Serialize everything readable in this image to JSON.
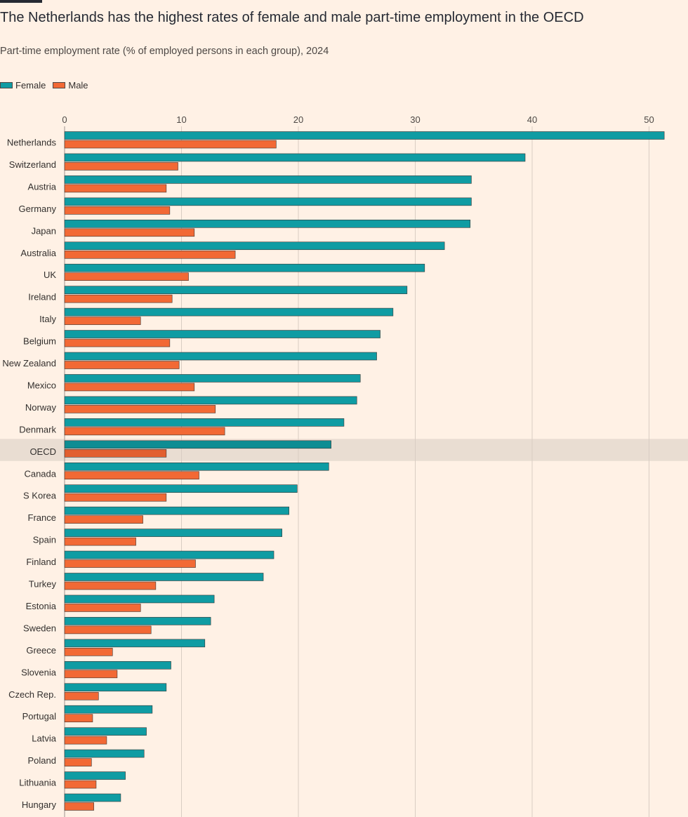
{
  "title": "The Netherlands has the highest rates of female and male part-time employment in the OECD",
  "subtitle": "Part-time employment rate (% of employed persons in each group), 2024",
  "colors": {
    "female": "#0f9ca3",
    "male": "#f26935",
    "highlight_row": "#e9ddd2",
    "background": "#fff1e5"
  },
  "chart_data": {
    "type": "bar",
    "orientation": "horizontal",
    "title": "The Netherlands has the highest rates of female and male part-time employment in the OECD",
    "subtitle": "Part-time employment rate (% of employed persons in each group), 2024",
    "xlim": [
      0,
      52
    ],
    "x_ticks": [
      0,
      10,
      20,
      30,
      40,
      50
    ],
    "grid": true,
    "legend_position": "top-left",
    "highlight_category": "OECD",
    "categories": [
      "Netherlands",
      "Switzerland",
      "Austria",
      "Germany",
      "Japan",
      "Australia",
      "UK",
      "Ireland",
      "Italy",
      "Belgium",
      "New Zealand",
      "Mexico",
      "Norway",
      "Denmark",
      "OECD",
      "Canada",
      "S Korea",
      "France",
      "Spain",
      "Finland",
      "Turkey",
      "Estonia",
      "Sweden",
      "Greece",
      "Slovenia",
      "Czech Rep.",
      "Portugal",
      "Latvia",
      "Poland",
      "Lithuania",
      "Hungary"
    ],
    "series": [
      {
        "name": "Female",
        "values": [
          51.3,
          39.4,
          34.8,
          34.8,
          34.7,
          32.5,
          30.8,
          29.3,
          28.1,
          27.0,
          26.7,
          25.3,
          25.0,
          23.9,
          22.8,
          22.6,
          19.9,
          19.2,
          18.6,
          17.9,
          17.0,
          12.8,
          12.5,
          12.0,
          9.1,
          8.7,
          7.5,
          7.0,
          6.8,
          5.2,
          4.8
        ]
      },
      {
        "name": "Male",
        "values": [
          18.1,
          9.7,
          8.7,
          9.0,
          11.1,
          14.6,
          10.6,
          9.2,
          6.5,
          9.0,
          9.8,
          11.1,
          12.9,
          13.7,
          8.7,
          11.5,
          8.7,
          6.7,
          6.1,
          11.2,
          7.8,
          6.5,
          7.4,
          4.1,
          4.5,
          2.9,
          2.4,
          3.6,
          2.3,
          2.7,
          2.5
        ]
      }
    ]
  }
}
